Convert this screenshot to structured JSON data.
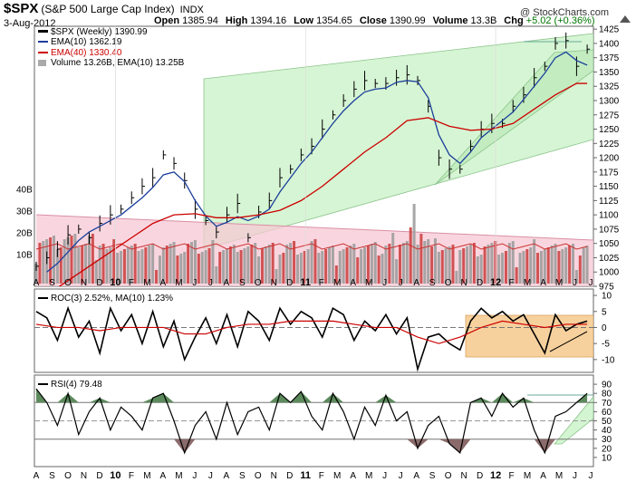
{
  "header": {
    "symbol": "$SPX",
    "name": "(S&P 500 Large Cap Index)",
    "exchange": "INDX",
    "date": "3-Aug-2012",
    "open_label": "Open",
    "open": "1385.94",
    "high_label": "High",
    "high": "1394.16",
    "low_label": "Low",
    "low": "1354.65",
    "close_label": "Close",
    "close": "1390.99",
    "volume_label": "Volume",
    "volume": "13.3B",
    "chg_label": "Chg",
    "chg": "+5.02 (+0.36%)",
    "brand": "@ StockCharts.com",
    "up_color": "#007700"
  },
  "chart_data": [
    {
      "type": "line",
      "panel": "price",
      "legend": [
        "$SPX (Weekly) 1390.99",
        "EMA(10) 1362.19",
        "EMA(40) 1330.40",
        "Volume 13.26B, EMA(10) 13.25B"
      ],
      "series": [
        {
          "name": "$SPX (Weekly) 1390.99",
          "color": "#000000",
          "style": "ohlc-bars",
          "x": [
            0,
            3,
            6,
            9,
            12,
            15,
            18,
            21,
            24,
            27,
            30,
            33,
            36,
            39,
            42,
            45,
            48,
            51,
            54,
            57,
            60,
            63,
            66,
            69,
            72,
            75,
            78,
            81,
            84,
            87,
            90,
            93,
            96,
            99,
            102,
            105,
            108,
            111,
            114,
            117,
            120,
            123,
            126,
            129,
            132,
            135,
            138,
            141,
            144,
            147,
            150,
            153,
            156
          ],
          "values": [
            1010,
            1025,
            1040,
            1065,
            1075,
            1060,
            1085,
            1100,
            1110,
            1130,
            1150,
            1165,
            1205,
            1190,
            1160,
            1110,
            1090,
            1070,
            1100,
            1120,
            1060,
            1105,
            1125,
            1165,
            1180,
            1205,
            1220,
            1250,
            1275,
            1300,
            1320,
            1335,
            1330,
            1330,
            1340,
            1345,
            1335,
            1290,
            1200,
            1180,
            1180,
            1220,
            1250,
            1260,
            1260,
            1290,
            1310,
            1340,
            1360,
            1400,
            1405,
            1360,
            1390
          ]
        },
        {
          "name": "EMA(10) 1362.19",
          "color": "#1c3f9c",
          "x": [
            3,
            6,
            9,
            12,
            15,
            18,
            21,
            24,
            27,
            30,
            33,
            36,
            39,
            42,
            45,
            48,
            51,
            54,
            57,
            60,
            63,
            66,
            69,
            72,
            75,
            78,
            81,
            84,
            87,
            90,
            93,
            96,
            99,
            102,
            105,
            108,
            111,
            114,
            117,
            120,
            123,
            126,
            129,
            132,
            135,
            138,
            141,
            144,
            147,
            150,
            153,
            156
          ],
          "values": [
            1000,
            1015,
            1035,
            1055,
            1070,
            1080,
            1090,
            1100,
            1115,
            1130,
            1148,
            1170,
            1175,
            1158,
            1125,
            1098,
            1080,
            1087,
            1097,
            1090,
            1098,
            1110,
            1140,
            1165,
            1190,
            1210,
            1235,
            1260,
            1282,
            1300,
            1315,
            1320,
            1322,
            1332,
            1335,
            1333,
            1305,
            1240,
            1205,
            1190,
            1210,
            1235,
            1250,
            1265,
            1280,
            1302,
            1325,
            1348,
            1375,
            1385,
            1370,
            1362
          ]
        },
        {
          "name": "EMA(40) 1330.40",
          "color": "#cc0000",
          "x": [
            3,
            9,
            15,
            21,
            27,
            33,
            39,
            45,
            51,
            57,
            63,
            69,
            75,
            81,
            87,
            93,
            99,
            105,
            111,
            117,
            123,
            129,
            135,
            141,
            147,
            153,
            156
          ],
          "values": [
            960,
            985,
            1010,
            1035,
            1060,
            1085,
            1100,
            1102,
            1095,
            1095,
            1100,
            1108,
            1125,
            1150,
            1180,
            1210,
            1235,
            1265,
            1270,
            1255,
            1248,
            1250,
            1260,
            1285,
            1310,
            1330,
            1330
          ]
        }
      ],
      "ylim": [
        975,
        1430
      ],
      "y_ticks": [
        1425,
        1400,
        1375,
        1350,
        1325,
        1300,
        1275,
        1250,
        1225,
        1200,
        1175,
        1150,
        1125,
        1100,
        1075,
        1050,
        1025,
        1000,
        975
      ],
      "volume_ticks": [
        "40B",
        "30B",
        "20B",
        "10B"
      ]
    },
    {
      "type": "line",
      "panel": "roc",
      "legend": "ROC(3) 2.52%, MA(10) 1.23%",
      "series": [
        {
          "name": "ROC(3) 2.52%",
          "color": "#000000",
          "x": [
            0,
            3,
            6,
            9,
            12,
            15,
            18,
            21,
            24,
            27,
            30,
            33,
            36,
            39,
            42,
            45,
            48,
            51,
            54,
            57,
            60,
            63,
            66,
            69,
            72,
            75,
            78,
            81,
            84,
            87,
            90,
            93,
            96,
            99,
            102,
            105,
            108,
            111,
            114,
            117,
            120,
            123,
            126,
            129,
            132,
            135,
            138,
            141,
            144,
            147,
            150,
            153,
            156
          ],
          "values": [
            5,
            3,
            -4,
            6,
            -3,
            2,
            -8,
            6,
            -1,
            4,
            -5,
            5,
            -6,
            2,
            -10,
            -3,
            3,
            -5,
            4,
            -6,
            5,
            2,
            -4,
            6,
            1,
            5,
            3,
            -3,
            6,
            4,
            -4,
            2,
            -1,
            4,
            -2,
            3,
            -13,
            -3,
            -2,
            -5,
            -7,
            2,
            6,
            3,
            5,
            2,
            4,
            -2,
            -8,
            4,
            -1,
            1,
            2
          ]
        },
        {
          "name": "MA(10) 1.23%",
          "color": "#cc0000",
          "x": [
            0,
            6,
            12,
            18,
            24,
            30,
            36,
            42,
            48,
            54,
            60,
            66,
            72,
            78,
            84,
            90,
            96,
            102,
            108,
            114,
            120,
            126,
            132,
            138,
            144,
            150,
            156
          ],
          "values": [
            1,
            0,
            0,
            -1,
            0,
            0,
            0,
            -2,
            -2,
            0,
            1,
            1,
            2,
            2,
            2,
            1,
            0,
            0,
            -3,
            -5,
            -3,
            0,
            2,
            1,
            0,
            1,
            1
          ]
        }
      ],
      "ylim": [
        -14,
        12
      ],
      "y_ticks": [
        10,
        5,
        0,
        -5,
        -10
      ]
    },
    {
      "type": "area",
      "panel": "rsi",
      "legend": "RSI(4) 79.48",
      "series": [
        {
          "name": "RSI(4) 79.48",
          "x": [
            0,
            3,
            6,
            9,
            12,
            15,
            18,
            21,
            24,
            27,
            30,
            33,
            36,
            39,
            42,
            45,
            48,
            51,
            54,
            57,
            60,
            63,
            66,
            69,
            72,
            75,
            78,
            81,
            84,
            87,
            90,
            93,
            96,
            99,
            102,
            105,
            108,
            111,
            114,
            117,
            120,
            123,
            126,
            129,
            132,
            135,
            138,
            141,
            144,
            147,
            150,
            153,
            156
          ],
          "values": [
            85,
            70,
            45,
            80,
            35,
            60,
            75,
            40,
            65,
            55,
            40,
            75,
            80,
            50,
            15,
            45,
            60,
            30,
            70,
            35,
            60,
            65,
            40,
            80,
            70,
            82,
            55,
            40,
            80,
            60,
            30,
            65,
            45,
            78,
            50,
            60,
            20,
            45,
            55,
            25,
            15,
            70,
            75,
            55,
            80,
            65,
            75,
            40,
            15,
            55,
            60,
            70,
            80
          ]
        }
      ],
      "ylim": [
        0,
        100
      ],
      "y_ticks": [
        90,
        80,
        70,
        60,
        50,
        40,
        30,
        20,
        10
      ]
    }
  ],
  "x_axis_labels": [
    "A",
    "S",
    "O",
    "N",
    "D",
    "10",
    "F",
    "M",
    "A",
    "M",
    "J",
    "J",
    "A",
    "S",
    "O",
    "N",
    "D",
    "11",
    "F",
    "M",
    "A",
    "M",
    "J",
    "J",
    "A",
    "S",
    "O",
    "N",
    "D",
    "12",
    "F",
    "M",
    "A",
    "M",
    "J",
    "J"
  ]
}
